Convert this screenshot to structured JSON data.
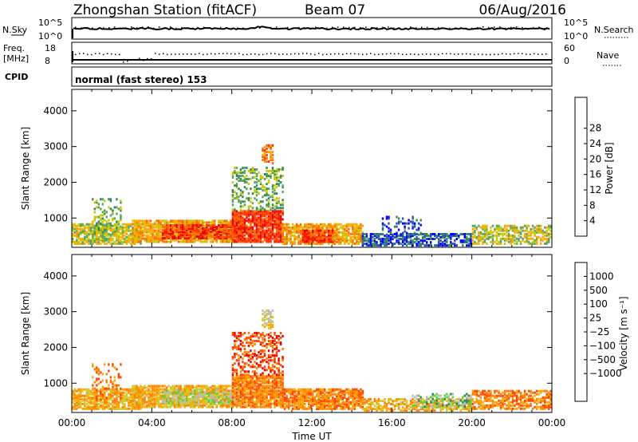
{
  "header": {
    "title": "Zhongshan Station (fitACF)",
    "beam": "Beam 07",
    "date": "06/Aug/2016"
  },
  "strip_nsky": {
    "left_label": "N.Sky",
    "right_label": "N.Search",
    "left_ticks": [
      "10^5",
      "10^0"
    ],
    "right_ticks": [
      "10^5",
      "10^0"
    ]
  },
  "strip_freq": {
    "left_label_1": "Freq.",
    "left_label_2": "[MHz]",
    "left_ticks": [
      "18",
      "8"
    ],
    "right_ticks": [
      "60",
      "0"
    ],
    "right_label": "Nave",
    "cpid_label": "CPID",
    "cpid_text": "normal (fast stereo) 153"
  },
  "colors": {
    "power_scale": [
      "#0000ff",
      "#2a4fb0",
      "#2e8b57",
      "#5aa55a",
      "#c8c800",
      "#ffa500",
      "#ff6a00",
      "#ff3300",
      "#ee0000"
    ],
    "velocity_scale": [
      "#1a2fcf",
      "#2d5fb8",
      "#2e8b57",
      "#66cc33",
      "#bbbbbb",
      "#cccc33",
      "#ffa500",
      "#ff7f00",
      "#ff4400",
      "#ee0000"
    ]
  },
  "chart_data": [
    {
      "type": "heatmap",
      "panel": "power",
      "ylabel": "Slant Range [km]",
      "ylim": [
        180,
        4600
      ],
      "yticks": [
        "1000",
        "2000",
        "3000",
        "4000"
      ],
      "xticks": [
        "00:00",
        "04:00",
        "08:00",
        "12:00",
        "16:00",
        "20:00",
        "00:00"
      ],
      "colorbar_label": "Power [dB]",
      "colorbar_ticks": [
        "4",
        "8",
        "12",
        "16",
        "20",
        "24",
        "28"
      ],
      "blocks": [
        {
          "t0": 0.0,
          "t1": 3.5,
          "r0": 250,
          "r1": 800,
          "dens": 0.75,
          "lvl": 4
        },
        {
          "t0": 1.0,
          "t1": 2.5,
          "r0": 500,
          "r1": 1500,
          "dens": 0.25,
          "lvl": 3
        },
        {
          "t0": 3.0,
          "t1": 8.0,
          "r0": 300,
          "r1": 900,
          "dens": 0.8,
          "lvl": 5
        },
        {
          "t0": 4.5,
          "t1": 8.5,
          "r0": 400,
          "r1": 800,
          "dens": 0.7,
          "lvl": 7
        },
        {
          "t0": 8.0,
          "t1": 10.5,
          "r0": 300,
          "r1": 1200,
          "dens": 0.85,
          "lvl": 7
        },
        {
          "t0": 8.0,
          "t1": 10.5,
          "r0": 1200,
          "r1": 2400,
          "dens": 0.35,
          "lvl": 3
        },
        {
          "t0": 9.5,
          "t1": 10.0,
          "r0": 2500,
          "r1": 3000,
          "dens": 0.5,
          "lvl": 6
        },
        {
          "t0": 10.5,
          "t1": 14.5,
          "r0": 250,
          "r1": 800,
          "dens": 0.75,
          "lvl": 5
        },
        {
          "t0": 11.5,
          "t1": 13.0,
          "r0": 300,
          "r1": 650,
          "dens": 0.8,
          "lvl": 7
        },
        {
          "t0": 14.5,
          "t1": 20.0,
          "r0": 200,
          "r1": 550,
          "dens": 0.6,
          "lvl": 1
        },
        {
          "t0": 15.5,
          "t1": 17.5,
          "r0": 500,
          "r1": 1000,
          "dens": 0.25,
          "lvl": 1
        },
        {
          "t0": 20.0,
          "t1": 24.0,
          "r0": 250,
          "r1": 750,
          "dens": 0.6,
          "lvl": 4
        }
      ]
    },
    {
      "type": "heatmap",
      "panel": "velocity",
      "ylabel": "Slant Range [km]",
      "xlabel": "Time UT",
      "ylim": [
        180,
        4600
      ],
      "yticks": [
        "1000",
        "2000",
        "3000",
        "4000"
      ],
      "xticks": [
        "00:00",
        "04:00",
        "08:00",
        "12:00",
        "16:00",
        "20:00",
        "00:00"
      ],
      "colorbar_label": "Velocity [m s⁻¹]",
      "colorbar_ticks": [
        "1000",
        "500",
        "100",
        "25",
        "−25",
        "−100",
        "−500",
        "−1000"
      ],
      "blocks": [
        {
          "t0": 0.0,
          "t1": 3.5,
          "r0": 250,
          "r1": 800,
          "dens": 0.75,
          "lvl": 6
        },
        {
          "t0": 1.0,
          "t1": 2.5,
          "r0": 500,
          "r1": 1500,
          "dens": 0.25,
          "lvl": 7
        },
        {
          "t0": 3.0,
          "t1": 8.0,
          "r0": 300,
          "r1": 900,
          "dens": 0.8,
          "lvl": 6
        },
        {
          "t0": 4.5,
          "t1": 8.5,
          "r0": 400,
          "r1": 800,
          "dens": 0.5,
          "lvl": 4
        },
        {
          "t0": 8.0,
          "t1": 10.5,
          "r0": 300,
          "r1": 1200,
          "dens": 0.85,
          "lvl": 7
        },
        {
          "t0": 8.0,
          "t1": 10.5,
          "r0": 1200,
          "r1": 2400,
          "dens": 0.35,
          "lvl": 8
        },
        {
          "t0": 9.5,
          "t1": 10.0,
          "r0": 2500,
          "r1": 3000,
          "dens": 0.5,
          "lvl": 5
        },
        {
          "t0": 10.5,
          "t1": 14.5,
          "r0": 250,
          "r1": 800,
          "dens": 0.75,
          "lvl": 7
        },
        {
          "t0": 14.5,
          "t1": 20.0,
          "r0": 200,
          "r1": 550,
          "dens": 0.6,
          "lvl": 6
        },
        {
          "t0": 17.0,
          "t1": 20.0,
          "r0": 300,
          "r1": 700,
          "dens": 0.4,
          "lvl": 3
        },
        {
          "t0": 20.0,
          "t1": 24.0,
          "r0": 250,
          "r1": 750,
          "dens": 0.6,
          "lvl": 7
        }
      ]
    }
  ]
}
